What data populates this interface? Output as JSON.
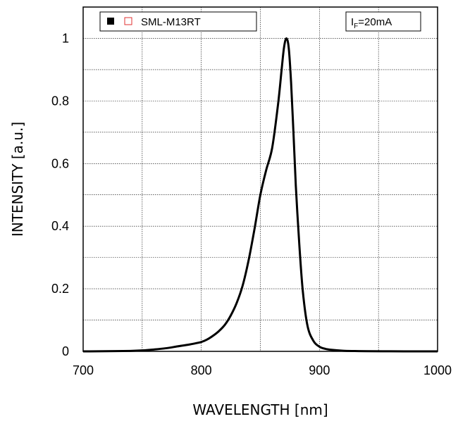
{
  "chart_data": {
    "type": "line",
    "xlabel": "WAVELENGTH [nm]",
    "ylabel": "INTENSITY [a.u.]",
    "xlim": [
      700,
      1000
    ],
    "ylim": [
      0,
      1.1
    ],
    "x_ticks": [
      700,
      800,
      900,
      1000
    ],
    "y_ticks": [
      0,
      0.2,
      0.4,
      0.6,
      0.8,
      1
    ],
    "x_tick_labels": [
      "700",
      "800",
      "900",
      "1000"
    ],
    "y_tick_labels": [
      "0",
      "0.2",
      "0.4",
      "0.6",
      "0.8",
      "1"
    ],
    "grid": true,
    "legend_position": "top-left",
    "legend": {
      "label": "SML-M13RT",
      "markers": [
        {
          "shape": "filled-square",
          "color": "#000000"
        },
        {
          "shape": "open-square",
          "color": "#e03030"
        }
      ]
    },
    "annotation": {
      "main": "I",
      "sub": "F",
      "rest": "=20mA"
    },
    "series": [
      {
        "color": "#000000",
        "x": [
          700,
          720,
          740,
          750,
          760,
          770,
          780,
          790,
          800,
          805,
          810,
          815,
          820,
          825,
          830,
          835,
          840,
          845,
          850,
          855,
          860,
          865,
          868,
          870,
          872,
          874,
          876,
          878,
          880,
          883,
          886,
          890,
          895,
          900,
          905,
          910,
          920,
          930,
          940,
          960,
          980,
          1000
        ],
        "y": [
          0.0,
          0.0005,
          0.0015,
          0.003,
          0.006,
          0.01,
          0.016,
          0.022,
          0.03,
          0.038,
          0.05,
          0.065,
          0.085,
          0.115,
          0.155,
          0.21,
          0.29,
          0.39,
          0.5,
          0.58,
          0.65,
          0.79,
          0.9,
          0.97,
          1.0,
          0.97,
          0.86,
          0.7,
          0.53,
          0.34,
          0.19,
          0.08,
          0.033,
          0.015,
          0.008,
          0.005,
          0.002,
          0.001,
          0.0005,
          0.0002,
          0.0001,
          0.0
        ]
      }
    ]
  }
}
